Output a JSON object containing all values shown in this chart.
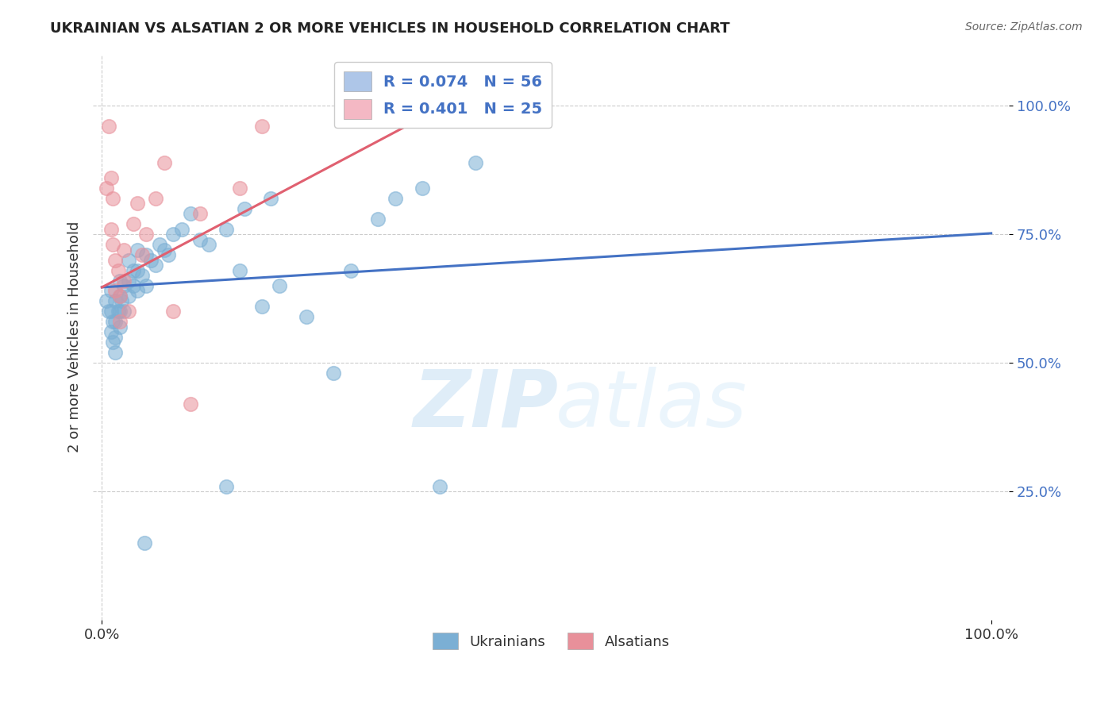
{
  "title": "UKRAINIAN VS ALSATIAN 2 OR MORE VEHICLES IN HOUSEHOLD CORRELATION CHART",
  "source": "Source: ZipAtlas.com",
  "ylabel": "2 or more Vehicles in Household",
  "ytick_labels": [
    "25.0%",
    "50.0%",
    "75.0%",
    "100.0%"
  ],
  "ytick_values": [
    0.25,
    0.5,
    0.75,
    1.0
  ],
  "xlim": [
    -0.01,
    1.02
  ],
  "ylim": [
    0.0,
    1.1
  ],
  "watermark_zip": "ZIP",
  "watermark_atlas": "atlas",
  "legend_entries": [
    {
      "label": "R = 0.074   N = 56",
      "color": "#aec6e8"
    },
    {
      "label": "R = 0.401   N = 25",
      "color": "#f4b8c4"
    }
  ],
  "legend_labels": [
    "Ukrainians",
    "Alsatians"
  ],
  "blue_color": "#7bafd4",
  "pink_color": "#e8909a",
  "blue_line_color": "#4472c4",
  "pink_line_color": "#e06070",
  "blue_scatter": [
    [
      0.005,
      0.62
    ],
    [
      0.008,
      0.6
    ],
    [
      0.01,
      0.64
    ],
    [
      0.01,
      0.6
    ],
    [
      0.01,
      0.56
    ],
    [
      0.012,
      0.58
    ],
    [
      0.012,
      0.54
    ],
    [
      0.015,
      0.62
    ],
    [
      0.015,
      0.58
    ],
    [
      0.015,
      0.55
    ],
    [
      0.015,
      0.52
    ],
    [
      0.018,
      0.6
    ],
    [
      0.02,
      0.66
    ],
    [
      0.02,
      0.63
    ],
    [
      0.02,
      0.6
    ],
    [
      0.02,
      0.57
    ],
    [
      0.022,
      0.62
    ],
    [
      0.025,
      0.65
    ],
    [
      0.025,
      0.6
    ],
    [
      0.03,
      0.7
    ],
    [
      0.03,
      0.66
    ],
    [
      0.03,
      0.63
    ],
    [
      0.035,
      0.68
    ],
    [
      0.035,
      0.65
    ],
    [
      0.04,
      0.72
    ],
    [
      0.04,
      0.68
    ],
    [
      0.04,
      0.64
    ],
    [
      0.045,
      0.67
    ],
    [
      0.05,
      0.71
    ],
    [
      0.05,
      0.65
    ],
    [
      0.055,
      0.7
    ],
    [
      0.06,
      0.69
    ],
    [
      0.065,
      0.73
    ],
    [
      0.07,
      0.72
    ],
    [
      0.075,
      0.71
    ],
    [
      0.08,
      0.75
    ],
    [
      0.09,
      0.76
    ],
    [
      0.1,
      0.79
    ],
    [
      0.11,
      0.74
    ],
    [
      0.12,
      0.73
    ],
    [
      0.14,
      0.76
    ],
    [
      0.155,
      0.68
    ],
    [
      0.16,
      0.8
    ],
    [
      0.18,
      0.61
    ],
    [
      0.19,
      0.82
    ],
    [
      0.2,
      0.65
    ],
    [
      0.23,
      0.59
    ],
    [
      0.26,
      0.48
    ],
    [
      0.28,
      0.68
    ],
    [
      0.31,
      0.78
    ],
    [
      0.33,
      0.82
    ],
    [
      0.36,
      0.84
    ],
    [
      0.38,
      0.26
    ],
    [
      0.42,
      0.89
    ],
    [
      0.048,
      0.15
    ],
    [
      0.14,
      0.26
    ]
  ],
  "pink_scatter": [
    [
      0.005,
      0.84
    ],
    [
      0.008,
      0.96
    ],
    [
      0.01,
      0.76
    ],
    [
      0.01,
      0.86
    ],
    [
      0.012,
      0.82
    ],
    [
      0.012,
      0.73
    ],
    [
      0.015,
      0.7
    ],
    [
      0.015,
      0.64
    ],
    [
      0.018,
      0.68
    ],
    [
      0.02,
      0.63
    ],
    [
      0.02,
      0.58
    ],
    [
      0.025,
      0.72
    ],
    [
      0.025,
      0.66
    ],
    [
      0.03,
      0.6
    ],
    [
      0.035,
      0.77
    ],
    [
      0.04,
      0.81
    ],
    [
      0.045,
      0.71
    ],
    [
      0.05,
      0.75
    ],
    [
      0.06,
      0.82
    ],
    [
      0.07,
      0.89
    ],
    [
      0.08,
      0.6
    ],
    [
      0.1,
      0.42
    ],
    [
      0.11,
      0.79
    ],
    [
      0.155,
      0.84
    ],
    [
      0.18,
      0.96
    ]
  ],
  "blue_trend": {
    "x_start": 0.0,
    "y_start": 0.647,
    "x_end": 1.0,
    "y_end": 0.752
  },
  "pink_trend": {
    "x_start": 0.0,
    "y_start": 0.647,
    "x_end": 0.38,
    "y_end": 0.995
  },
  "grid_color": "#cccccc",
  "background_color": "#ffffff"
}
